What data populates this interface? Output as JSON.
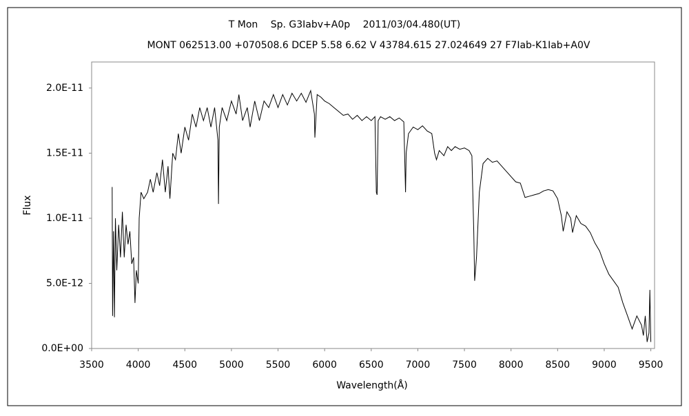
{
  "chart_data": {
    "type": "line",
    "title": "T Mon　 Sp. G3Iabv+A0p　 2011/03/04.480(UT)",
    "subtitle": "MONT 062513.00 +070508.6 DCEP 5.58 6.62 V 43784.615 27.024649 27 F7Iab-K1Iab+A0V",
    "xlabel": "Wavelength(Å)",
    "ylabel": "Flux",
    "xlim": [
      3500,
      9540
    ],
    "xticks": [
      3500,
      4000,
      4500,
      5000,
      5500,
      6000,
      6500,
      7000,
      7500,
      8000,
      8500,
      9000,
      9500
    ],
    "ylim": [
      0,
      2.2e-11
    ],
    "yticks": [
      {
        "value": 0,
        "label": "0.0E+00"
      },
      {
        "value": 5e-12,
        "label": "5.0E-12"
      },
      {
        "value": 1e-11,
        "label": "1.0E-11"
      },
      {
        "value": 1.5e-11,
        "label": "1.5E-11"
      },
      {
        "value": 2e-11,
        "label": "2.0E-11"
      }
    ],
    "grid": false,
    "series": [
      {
        "color": "#000000",
        "x": [
          3720,
          3725,
          3735,
          3745,
          3755,
          3770,
          3790,
          3810,
          3830,
          3850,
          3870,
          3890,
          3910,
          3930,
          3950,
          3965,
          3980,
          4000,
          4010,
          4030,
          4060,
          4100,
          4130,
          4160,
          4200,
          4230,
          4260,
          4290,
          4320,
          4340,
          4370,
          4400,
          4430,
          4460,
          4500,
          4540,
          4580,
          4620,
          4660,
          4700,
          4740,
          4780,
          4820,
          4855,
          4861,
          4870,
          4900,
          4950,
          5000,
          5050,
          5080,
          5120,
          5170,
          5200,
          5250,
          5300,
          5350,
          5400,
          5450,
          5500,
          5550,
          5600,
          5650,
          5700,
          5750,
          5800,
          5850,
          5890,
          5895,
          5920,
          5960,
          6000,
          6050,
          6100,
          6150,
          6200,
          6250,
          6300,
          6350,
          6400,
          6450,
          6500,
          6540,
          6555,
          6563,
          6575,
          6600,
          6650,
          6700,
          6750,
          6800,
          6850,
          6868,
          6875,
          6900,
          6950,
          7000,
          7050,
          7100,
          7150,
          7180,
          7200,
          7230,
          7280,
          7320,
          7360,
          7400,
          7450,
          7500,
          7550,
          7580,
          7600,
          7610,
          7630,
          7660,
          7700,
          7750,
          7800,
          7850,
          7900,
          7950,
          8000,
          8050,
          8100,
          8150,
          8200,
          8250,
          8300,
          8350,
          8400,
          8450,
          8500,
          8540,
          8560,
          8600,
          8640,
          8660,
          8700,
          8750,
          8800,
          8850,
          8900,
          8950,
          9000,
          9050,
          9100,
          9150,
          9200,
          9250,
          9300,
          9350,
          9400,
          9420,
          9440,
          9460,
          9480,
          9490,
          9500
        ],
        "values": [
          1.24e-11,
          2.5e-12,
          9e-12,
          2.4e-12,
          1e-11,
          6e-12,
          9.5e-12,
          7e-12,
          1.05e-11,
          7e-12,
          9.5e-12,
          8e-12,
          9e-12,
          6.5e-12,
          7e-12,
          3.5e-12,
          6e-12,
          5e-12,
          1e-11,
          1.2e-11,
          1.15e-11,
          1.2e-11,
          1.3e-11,
          1.2e-11,
          1.35e-11,
          1.25e-11,
          1.45e-11,
          1.2e-11,
          1.4e-11,
          1.15e-11,
          1.5e-11,
          1.45e-11,
          1.65e-11,
          1.5e-11,
          1.7e-11,
          1.6e-11,
          1.8e-11,
          1.7e-11,
          1.85e-11,
          1.75e-11,
          1.85e-11,
          1.7e-11,
          1.85e-11,
          1.6e-11,
          1.11e-11,
          1.7e-11,
          1.85e-11,
          1.75e-11,
          1.9e-11,
          1.8e-11,
          1.95e-11,
          1.75e-11,
          1.85e-11,
          1.7e-11,
          1.9e-11,
          1.75e-11,
          1.9e-11,
          1.85e-11,
          1.95e-11,
          1.85e-11,
          1.95e-11,
          1.87e-11,
          1.96e-11,
          1.9e-11,
          1.96e-11,
          1.89e-11,
          1.98e-11,
          1.8e-11,
          1.62e-11,
          1.95e-11,
          1.93e-11,
          1.9e-11,
          1.88e-11,
          1.85e-11,
          1.82e-11,
          1.79e-11,
          1.8e-11,
          1.76e-11,
          1.79e-11,
          1.75e-11,
          1.78e-11,
          1.75e-11,
          1.78e-11,
          1.2e-11,
          1.18e-11,
          1.75e-11,
          1.78e-11,
          1.76e-11,
          1.78e-11,
          1.75e-11,
          1.77e-11,
          1.74e-11,
          1.2e-11,
          1.5e-11,
          1.65e-11,
          1.7e-11,
          1.68e-11,
          1.71e-11,
          1.67e-11,
          1.65e-11,
          1.5e-11,
          1.45e-11,
          1.52e-11,
          1.48e-11,
          1.55e-11,
          1.52e-11,
          1.55e-11,
          1.53e-11,
          1.54e-11,
          1.52e-11,
          1.48e-11,
          9e-12,
          5.2e-12,
          7e-12,
          1.2e-11,
          1.42e-11,
          1.46e-11,
          1.43e-11,
          1.44e-11,
          1.4e-11,
          1.36e-11,
          1.32e-11,
          1.28e-11,
          1.27e-11,
          1.16e-11,
          1.17e-11,
          1.18e-11,
          1.19e-11,
          1.21e-11,
          1.22e-11,
          1.21e-11,
          1.15e-11,
          1.02e-11,
          9e-12,
          1.05e-11,
          1e-11,
          8.9e-12,
          1.02e-11,
          9.6e-12,
          9.4e-12,
          8.9e-12,
          8.1e-12,
          7.5e-12,
          6.5e-12,
          5.7e-12,
          5.2e-12,
          4.7e-12,
          3.5e-12,
          2.5e-12,
          1.5e-12,
          2.5e-12,
          1.8e-12,
          1e-12,
          2.5e-12,
          5e-13,
          1.2e-12,
          4.5e-12,
          5e-13
        ]
      }
    ]
  }
}
